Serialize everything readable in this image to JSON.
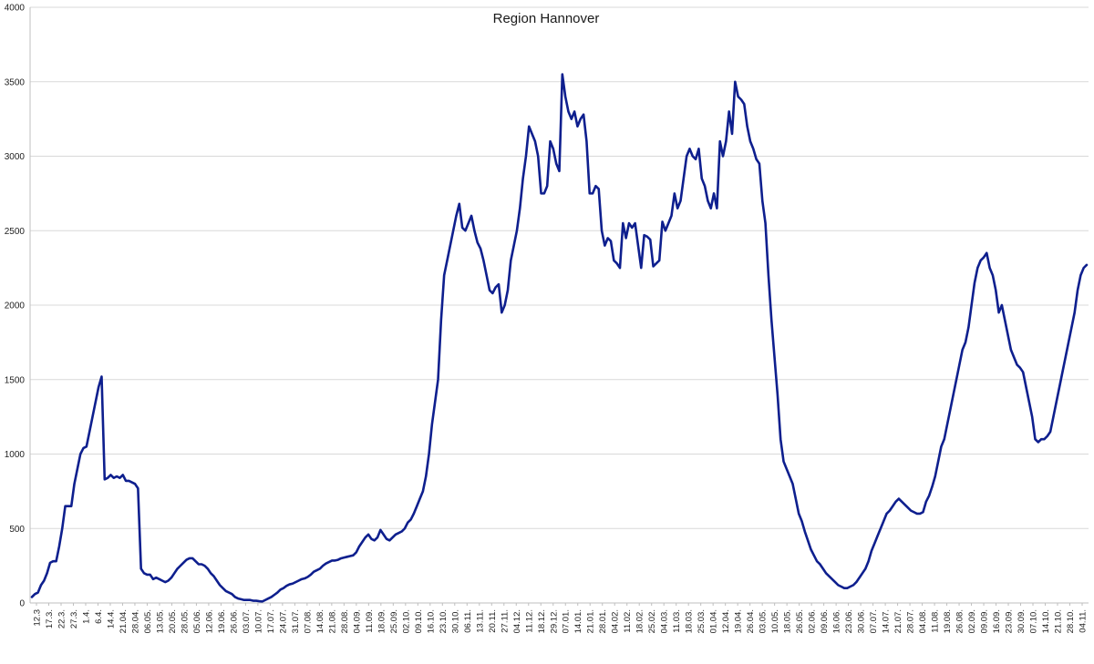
{
  "chart_data": {
    "type": "line",
    "title": "Region Hannover",
    "xlabel": "",
    "ylabel": "",
    "ylim": [
      0,
      4000
    ],
    "yticks": [
      0,
      500,
      1000,
      1500,
      2000,
      2500,
      3000,
      3500,
      4000
    ],
    "grid": true,
    "legend": "none",
    "colors": {
      "series": "#0e1f8e",
      "grid": "#d9d9d9"
    },
    "x_tick_labels": [
      "12.3",
      "17.3.",
      "22.3.",
      "27.3.",
      "1.4.",
      "6.4.",
      "14.4.",
      "21.04.",
      "28.04.",
      "06.05.",
      "13.05.",
      "20.05.",
      "28.05.",
      "05.06.",
      "12.06.",
      "19.06.",
      "26.06.",
      "03.07.",
      "10.07.",
      "17.07.",
      "24.07.",
      "31.07.",
      "07.08.",
      "14.08.",
      "21.08.",
      "28.08.",
      "04.09.",
      "11.09.",
      "18.09.",
      "25.09.",
      "02.10.",
      "09.10.",
      "16.10.",
      "23.10.",
      "30.10.",
      "06.11.",
      "13.11.",
      "20.11.",
      "27.11.",
      "04.12.",
      "11.12.",
      "18.12.",
      "29.12.",
      "07.01.",
      "14.01.",
      "21.01.",
      "28.01.",
      "04.02.",
      "11.02.",
      "18.02.",
      "25.02.",
      "04.03.",
      "11.03.",
      "18.03.",
      "25.03.",
      "01.04.",
      "12.04.",
      "19.04.",
      "26.04.",
      "03.05.",
      "10.05.",
      "18.05.",
      "26.05.",
      "02.06.",
      "09.06.",
      "16.06.",
      "23.06.",
      "30.06.",
      "07.07.",
      "14.07.",
      "21.07.",
      "28.07.",
      "04.08.",
      "11.08.",
      "19.08.",
      "26.08.",
      "02.09.",
      "09.09.",
      "16.09.",
      "23.09.",
      "30.09.",
      "07.10.",
      "14.10.",
      "21.10.",
      "28.10.",
      "04.11."
    ],
    "series": [
      {
        "name": "",
        "values": [
          40,
          60,
          70,
          120,
          150,
          200,
          270,
          280,
          280,
          380,
          500,
          650,
          650,
          650,
          800,
          900,
          1000,
          1040,
          1050,
          1150,
          1250,
          1350,
          1450,
          1520,
          830,
          840,
          860,
          840,
          850,
          840,
          860,
          820,
          820,
          810,
          800,
          770,
          230,
          200,
          190,
          190,
          160,
          170,
          160,
          150,
          140,
          150,
          170,
          200,
          230,
          250,
          270,
          290,
          300,
          300,
          280,
          260,
          260,
          250,
          230,
          200,
          180,
          150,
          120,
          100,
          80,
          70,
          60,
          40,
          30,
          25,
          20,
          20,
          20,
          15,
          15,
          12,
          10,
          20,
          30,
          40,
          55,
          70,
          90,
          100,
          115,
          125,
          130,
          140,
          150,
          160,
          165,
          175,
          190,
          210,
          220,
          230,
          250,
          265,
          275,
          285,
          285,
          290,
          300,
          305,
          310,
          315,
          320,
          340,
          380,
          410,
          440,
          460,
          430,
          420,
          440,
          490,
          460,
          430,
          420,
          440,
          460,
          470,
          480,
          500,
          540,
          560,
          600,
          650,
          700,
          750,
          850,
          1000,
          1200,
          1350,
          1500,
          1900,
          2200,
          2300,
          2400,
          2500,
          2600,
          2680,
          2520,
          2500,
          2550,
          2600,
          2500,
          2420,
          2380,
          2300,
          2200,
          2100,
          2080,
          2120,
          2140,
          1950,
          2000,
          2100,
          2300,
          2400,
          2500,
          2650,
          2850,
          3000,
          3200,
          3150,
          3100,
          3000,
          2750,
          2750,
          2800,
          3100,
          3050,
          2950,
          2900,
          3550,
          3400,
          3300,
          3250,
          3300,
          3200,
          3250,
          3280,
          3100,
          2750,
          2750,
          2800,
          2780,
          2500,
          2400,
          2450,
          2430,
          2300,
          2280,
          2250,
          2550,
          2450,
          2550,
          2520,
          2550,
          2400,
          2250,
          2470,
          2460,
          2440,
          2260,
          2280,
          2300,
          2560,
          2500,
          2550,
          2600,
          2750,
          2650,
          2700,
          2850,
          3000,
          3050,
          3000,
          2980,
          3050,
          2850,
          2800,
          2700,
          2650,
          2750,
          2650,
          3100,
          3000,
          3100,
          3300,
          3150,
          3500,
          3400,
          3380,
          3350,
          3200,
          3100,
          3050,
          2980,
          2950,
          2700,
          2550,
          2200,
          1900,
          1650,
          1400,
          1100,
          950,
          900,
          850,
          800,
          700,
          600,
          550,
          480,
          420,
          360,
          320,
          280,
          260,
          230,
          200,
          180,
          160,
          140,
          120,
          110,
          100,
          100,
          110,
          120,
          140,
          170,
          200,
          230,
          280,
          350,
          400,
          450,
          500,
          550,
          600,
          620,
          650,
          680,
          700,
          680,
          660,
          640,
          620,
          610,
          600,
          600,
          610,
          680,
          720,
          780,
          850,
          950,
          1050,
          1100,
          1200,
          1300,
          1400,
          1500,
          1600,
          1700,
          1750,
          1850,
          2000,
          2150,
          2250,
          2300,
          2320,
          2350,
          2250,
          2200,
          2100,
          1950,
          2000,
          1900,
          1800,
          1700,
          1650,
          1600,
          1580,
          1550,
          1450,
          1350,
          1250,
          1100,
          1080,
          1100,
          1100,
          1120,
          1150,
          1250,
          1350,
          1450,
          1550,
          1650,
          1750,
          1850,
          1950,
          2100,
          2200,
          2250,
          2270
        ]
      }
    ]
  }
}
